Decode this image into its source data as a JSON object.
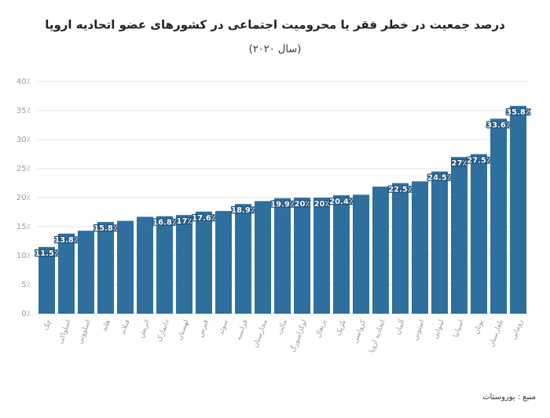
{
  "chart_data": {
    "type": "bar",
    "title": "درصد جمعیت در خطر فقر یا محرومیت اجتماعی در کشورهای عضو اتحادیه اروپا",
    "subtitle": "(سال ۲۰۲۰)",
    "source": "منبع : یوروستات",
    "categories": [
      "چک",
      "اسلواکی",
      "اسلوونی",
      "هلند",
      "فنلاند",
      "اتریش",
      "دانمارک",
      "لهستان",
      "قبرس",
      "سوئد",
      "فرانسه",
      "مجارستان",
      "مالت",
      "لوکزامبورگ",
      "پرتغال",
      "بلژیک",
      "کرواسی",
      "اتحادیه اروپا",
      "آلمان",
      "استونی",
      "لیتوانی",
      "اسپانیا",
      "یونان",
      "بلغارستان",
      "رومانی"
    ],
    "values": [
      11.5,
      13.8,
      14.3,
      15.8,
      16,
      16.7,
      16.8,
      17,
      17.6,
      17.7,
      18.9,
      19.4,
      19.9,
      20,
      20,
      20.4,
      20.5,
      21.9,
      22.5,
      22.8,
      24.5,
      27,
      27.5,
      33.6,
      35.8
    ],
    "value_labels": [
      "11.5٪",
      "13.8٪",
      null,
      "15.8٪",
      null,
      null,
      "16.8٪",
      "17٪",
      "17.6٪",
      null,
      "18.9٪",
      null,
      "19.9٪",
      "20٪",
      "20٪",
      "20.4٪",
      null,
      null,
      "22.5٪",
      null,
      "24.5٪",
      "27٪",
      "27.5٪",
      "33.6٪",
      "35.8٪"
    ],
    "color": "#2e6f9e",
    "ylim": [
      0,
      40
    ],
    "yticks": [
      {
        "value": 0,
        "label": "0٪"
      },
      {
        "value": 5,
        "label": "5٪"
      },
      {
        "value": 10,
        "label": "10٪"
      },
      {
        "value": 15,
        "label": "15٪"
      },
      {
        "value": 20,
        "label": "20٪"
      },
      {
        "value": 25,
        "label": "25٪"
      },
      {
        "value": 30,
        "label": "30٪"
      },
      {
        "value": 35,
        "label": "35٪"
      },
      {
        "value": 40,
        "label": "40٪"
      }
    ],
    "grid": true
  }
}
